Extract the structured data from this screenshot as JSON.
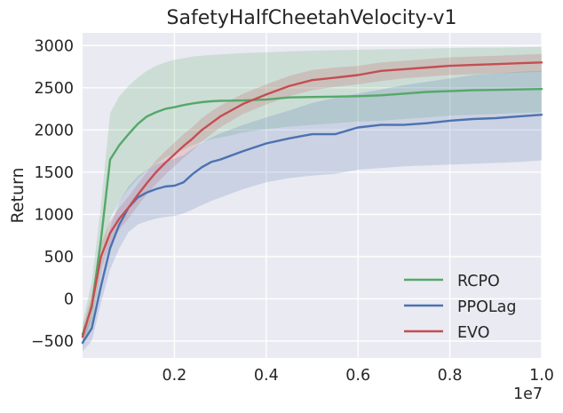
{
  "chart_data": {
    "type": "line",
    "title": "SafetyHalfCheetahVelocity-v1",
    "xlabel": "",
    "ylabel": "Return",
    "x_offset_label": "1e7",
    "xlim": [
      0.0,
      1.0
    ],
    "ylim": [
      -700,
      3150
    ],
    "xticks": [
      0.2,
      0.4,
      0.6,
      0.8,
      1.0
    ],
    "xtick_labels": [
      "0.2",
      "0.4",
      "0.6",
      "0.8",
      "1.0"
    ],
    "yticks": [
      -500,
      0,
      500,
      1000,
      1500,
      2000,
      2500,
      3000
    ],
    "ytick_labels": [
      "−500",
      "0",
      "500",
      "1000",
      "1500",
      "2000",
      "2500",
      "3000"
    ],
    "grid": true,
    "legend_position": "lower-right",
    "x": [
      0.0,
      0.02,
      0.04,
      0.06,
      0.08,
      0.1,
      0.12,
      0.14,
      0.16,
      0.18,
      0.2,
      0.22,
      0.24,
      0.26,
      0.28,
      0.3,
      0.35,
      0.4,
      0.45,
      0.5,
      0.55,
      0.6,
      0.65,
      0.7,
      0.75,
      0.8,
      0.85,
      0.9,
      0.95,
      1.0
    ],
    "series": [
      {
        "name": "RCPO",
        "color": "#55a868",
        "values": [
          -420,
          -100,
          700,
          1650,
          1820,
          1950,
          2070,
          2160,
          2210,
          2250,
          2270,
          2295,
          2315,
          2330,
          2340,
          2345,
          2350,
          2360,
          2385,
          2390,
          2395,
          2400,
          2410,
          2430,
          2450,
          2460,
          2470,
          2475,
          2480,
          2485
        ],
        "lower": [
          -560,
          -300,
          300,
          950,
          1150,
          1300,
          1420,
          1520,
          1600,
          1670,
          1720,
          1770,
          1820,
          1860,
          1890,
          1910,
          1970,
          2010,
          2040,
          2060,
          2080,
          2100,
          2110,
          2130,
          2150,
          2170,
          2180,
          2190,
          2200,
          2210
        ],
        "upper": [
          -280,
          200,
          1100,
          2200,
          2400,
          2520,
          2620,
          2700,
          2760,
          2800,
          2830,
          2850,
          2870,
          2880,
          2890,
          2895,
          2910,
          2920,
          2930,
          2940,
          2945,
          2950,
          2955,
          2960,
          2965,
          2970,
          2975,
          2975,
          2980,
          2985
        ]
      },
      {
        "name": "PPOLag",
        "color": "#4c72b0",
        "values": [
          -520,
          -350,
          150,
          600,
          880,
          1080,
          1200,
          1260,
          1300,
          1330,
          1340,
          1380,
          1480,
          1560,
          1620,
          1650,
          1750,
          1840,
          1900,
          1950,
          1950,
          2030,
          2060,
          2060,
          2080,
          2110,
          2130,
          2140,
          2160,
          2180
        ],
        "lower": [
          -620,
          -500,
          -50,
          350,
          600,
          790,
          880,
          920,
          950,
          970,
          980,
          1010,
          1060,
          1110,
          1160,
          1200,
          1300,
          1380,
          1430,
          1460,
          1480,
          1530,
          1550,
          1570,
          1580,
          1590,
          1600,
          1610,
          1620,
          1640
        ],
        "upper": [
          -420,
          -200,
          350,
          850,
          1150,
          1330,
          1450,
          1530,
          1590,
          1630,
          1660,
          1700,
          1780,
          1850,
          1910,
          1960,
          2060,
          2150,
          2230,
          2320,
          2380,
          2430,
          2480,
          2530,
          2570,
          2610,
          2650,
          2670,
          2690,
          2700
        ]
      },
      {
        "name": "EVO",
        "color": "#c44e52",
        "values": [
          -450,
          -80,
          500,
          780,
          950,
          1080,
          1230,
          1370,
          1500,
          1610,
          1710,
          1810,
          1900,
          2000,
          2080,
          2160,
          2310,
          2420,
          2520,
          2590,
          2620,
          2650,
          2700,
          2720,
          2740,
          2760,
          2770,
          2780,
          2790,
          2800
        ],
        "lower": [
          -560,
          -220,
          350,
          640,
          820,
          950,
          1100,
          1240,
          1360,
          1470,
          1570,
          1670,
          1760,
          1860,
          1950,
          2030,
          2190,
          2300,
          2400,
          2470,
          2510,
          2540,
          2580,
          2610,
          2630,
          2650,
          2660,
          2670,
          2680,
          2690
        ],
        "upper": [
          -340,
          60,
          650,
          920,
          1080,
          1210,
          1360,
          1500,
          1640,
          1750,
          1850,
          1950,
          2040,
          2140,
          2220,
          2290,
          2430,
          2540,
          2640,
          2710,
          2740,
          2760,
          2800,
          2820,
          2840,
          2860,
          2870,
          2880,
          2890,
          2900
        ]
      }
    ]
  }
}
